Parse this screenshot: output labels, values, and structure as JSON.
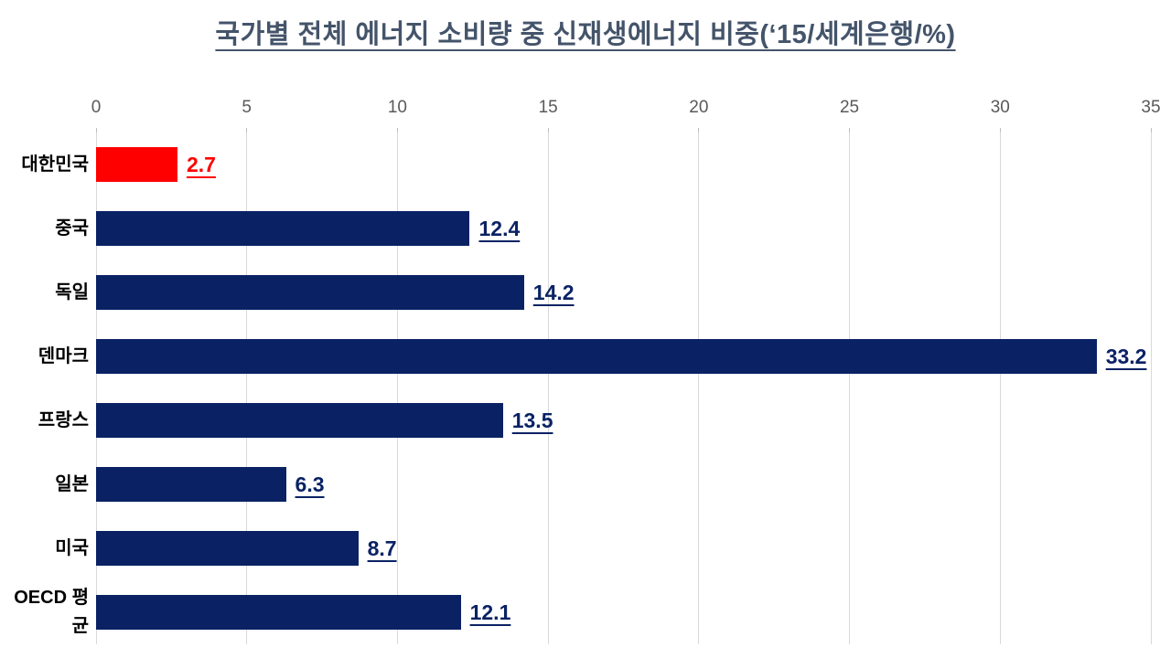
{
  "chart_data": {
    "type": "bar",
    "orientation": "horizontal",
    "title": "국가별 전체 에너지 소비량 중 신재생에너지 비중(‘15/세계은행/%)",
    "categories": [
      "대한민국",
      "중국",
      "독일",
      "덴마크",
      "프랑스",
      "일본",
      "미국",
      "OECD 평균"
    ],
    "values": [
      2.7,
      12.4,
      14.2,
      33.2,
      13.5,
      6.3,
      8.7,
      12.1
    ],
    "value_labels": [
      "2.7",
      "12.4",
      "14.2",
      "33.2",
      "13.5",
      "6.3",
      "8.7",
      "12.1"
    ],
    "bar_colors": [
      "#ff0000",
      "#0a2264",
      "#0a2264",
      "#0a2264",
      "#0a2264",
      "#0a2264",
      "#0a2264",
      "#0a2264"
    ],
    "xlabel": "",
    "ylabel": "",
    "xlim": [
      0,
      35
    ],
    "x_ticks": [
      0,
      5,
      10,
      15,
      20,
      25,
      30,
      35
    ],
    "grid": true,
    "legend": false,
    "source_note_in_title": "'15/세계은행/%",
    "colors": {
      "highlight": "#ff0000",
      "primary": "#0a2264",
      "title": "#44546a",
      "axis_label": "#595959",
      "gridline": "#d9d9d9",
      "tickmark": "#bfbfbf",
      "category_label": "#000000",
      "background": "#ffffff"
    }
  }
}
